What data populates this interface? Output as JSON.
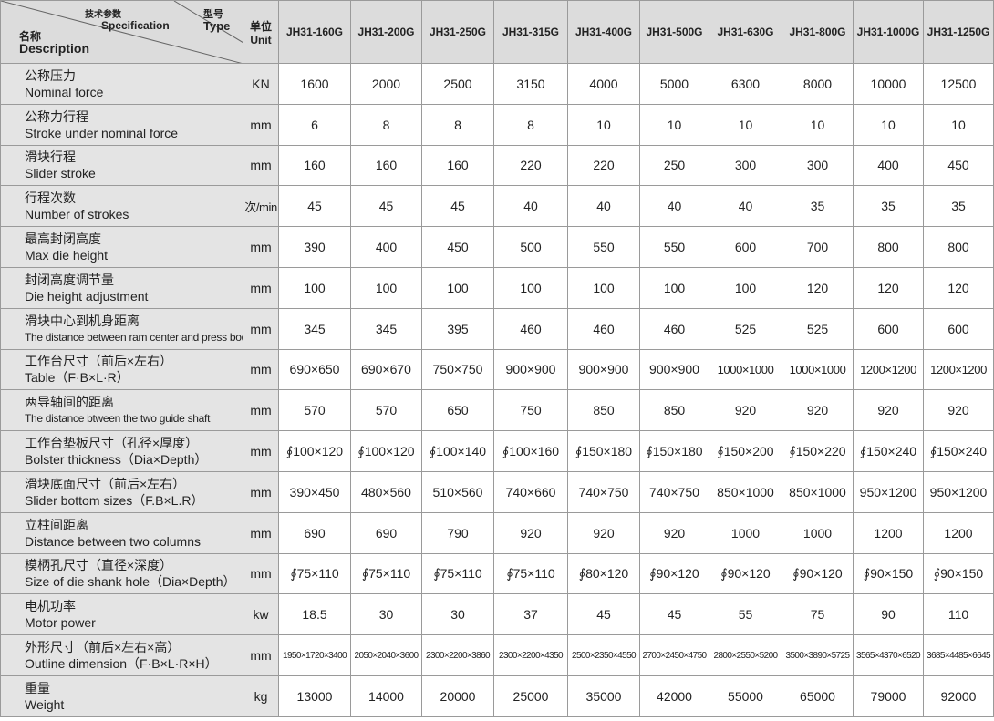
{
  "header": {
    "spec_zh": "技术参数",
    "spec_en": "Specification",
    "type_zh": "型号",
    "type_en": "Type",
    "name_zh": "名称",
    "name_en": "Description",
    "unit_zh": "单位",
    "unit_en": "Unit",
    "models": [
      "JH31-160G",
      "JH31-200G",
      "JH31-250G",
      "JH31-315G",
      "JH31-400G",
      "JH31-500G",
      "JH31-630G",
      "JH31-800G",
      "JH31-1000G",
      "JH31-1250G"
    ]
  },
  "rows": [
    {
      "name_zh": "公称压力",
      "name_en": "Nominal force",
      "unit": "KN",
      "values": [
        "1600",
        "2000",
        "2500",
        "3150",
        "4000",
        "5000",
        "6300",
        "8000",
        "10000",
        "12500"
      ]
    },
    {
      "name_zh": "公称力行程",
      "name_en": "Stroke under nominal force",
      "unit": "mm",
      "values": [
        "6",
        "8",
        "8",
        "8",
        "10",
        "10",
        "10",
        "10",
        "10",
        "10"
      ]
    },
    {
      "name_zh": "滑块行程",
      "name_en": "Slider stroke",
      "unit": "mm",
      "values": [
        "160",
        "160",
        "160",
        "220",
        "220",
        "250",
        "300",
        "300",
        "400",
        "450"
      ]
    },
    {
      "name_zh": "行程次数",
      "name_en": "Number of strokes",
      "unit": "次/min",
      "values": [
        "45",
        "45",
        "45",
        "40",
        "40",
        "40",
        "40",
        "35",
        "35",
        "35"
      ]
    },
    {
      "name_zh": "最高封闭高度",
      "name_en": "Max die height",
      "unit": "mm",
      "values": [
        "390",
        "400",
        "450",
        "500",
        "550",
        "550",
        "600",
        "700",
        "800",
        "800"
      ]
    },
    {
      "name_zh": "封闭高度调节量",
      "name_en": "Die height adjustment",
      "unit": "mm",
      "values": [
        "100",
        "100",
        "100",
        "100",
        "100",
        "100",
        "100",
        "120",
        "120",
        "120"
      ]
    },
    {
      "name_zh": "滑块中心到机身距离",
      "name_en": "The distance between ram center and press body",
      "unit": "mm",
      "values": [
        "345",
        "345",
        "395",
        "460",
        "460",
        "460",
        "525",
        "525",
        "600",
        "600"
      ]
    },
    {
      "name_zh": "工作台尺寸（前后×左右）",
      "name_en": "Table（F·B×L·R）",
      "unit": "mm",
      "values": [
        "690×650",
        "690×670",
        "750×750",
        "900×900",
        "900×900",
        "900×900",
        "1000×1000",
        "1000×1000",
        "1200×1200",
        "1200×1200"
      ]
    },
    {
      "name_zh": "两导轴间的距离",
      "name_en": "The distance btween the two guide shaft",
      "unit": "mm",
      "values": [
        "570",
        "570",
        "650",
        "750",
        "850",
        "850",
        "920",
        "920",
        "920",
        "920"
      ]
    },
    {
      "name_zh": "工作台垫板尺寸（孔径×厚度）",
      "name_en": "Bolster thickness（Dia×Depth）",
      "unit": "mm",
      "values": [
        "∮100×120",
        "∮100×120",
        "∮100×140",
        "∮100×160",
        "∮150×180",
        "∮150×180",
        "∮150×200",
        "∮150×220",
        "∮150×240",
        "∮150×240"
      ]
    },
    {
      "name_zh": "滑块底面尺寸（前后×左右）",
      "name_en": "Slider bottom sizes（F.B×L.R）",
      "unit": "mm",
      "values": [
        "390×450",
        "480×560",
        "510×560",
        "740×660",
        "740×750",
        "740×750",
        "850×1000",
        "850×1000",
        "950×1200",
        "950×1200"
      ]
    },
    {
      "name_zh": "立柱间距离",
      "name_en": "Distance between two columns",
      "unit": "mm",
      "values": [
        "690",
        "690",
        "790",
        "920",
        "920",
        "920",
        "1000",
        "1000",
        "1200",
        "1200"
      ]
    },
    {
      "name_zh": "模柄孔尺寸（直径×深度）",
      "name_en": "Size of die shank hole（Dia×Depth）",
      "unit": "mm",
      "values": [
        "∮75×110",
        "∮75×110",
        "∮75×110",
        "∮75×110",
        "∮80×120",
        "∮90×120",
        "∮90×120",
        "∮90×120",
        "∮90×150",
        "∮90×150"
      ]
    },
    {
      "name_zh": "电机功率",
      "name_en": "Motor power",
      "unit": "kw",
      "values": [
        "18.5",
        "30",
        "30",
        "37",
        "45",
        "45",
        "55",
        "75",
        "90",
        "110"
      ]
    },
    {
      "name_zh": "外形尺寸（前后×左右×高）",
      "name_en": "Outline dimension（F·B×L·R×H）",
      "unit": "mm",
      "values": [
        "1950×1720×3400",
        "2050×2040×3600",
        "2300×2200×3860",
        "2300×2200×4350",
        "2500×2350×4550",
        "2700×2450×4750",
        "2800×2550×5200",
        "3500×3890×5725",
        "3565×4370×6520",
        "3685×4485×6645"
      ]
    },
    {
      "name_zh": "重量",
      "name_en": "Weight",
      "unit": "kg",
      "values": [
        "13000",
        "14000",
        "20000",
        "25000",
        "35000",
        "42000",
        "55000",
        "65000",
        "79000",
        "92000"
      ]
    }
  ]
}
